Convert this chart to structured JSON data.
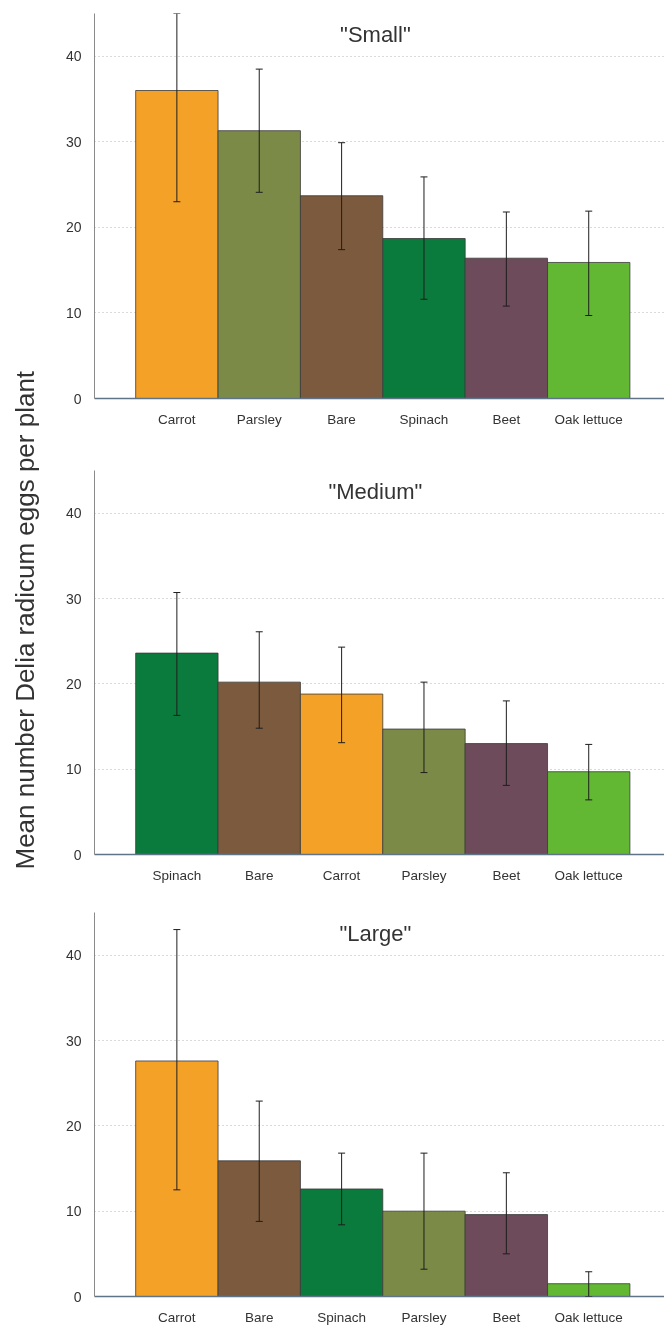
{
  "chart_data": [
    {
      "type": "bar",
      "title": "\"Small\"",
      "categories": [
        "Carrot",
        "Parsley",
        "Bare",
        "Spinach",
        "Beet",
        "Oak lettuce"
      ],
      "values": [
        36,
        31.3,
        23.7,
        18.7,
        16.4,
        15.9
      ],
      "colors": [
        "#f4a127",
        "#7b8b47",
        "#7b5a3e",
        "#0b7a3d",
        "#6e4b5a",
        "#62b832"
      ],
      "errors": [
        [
          23,
          45
        ],
        [
          24.1,
          38.5
        ],
        [
          17.4,
          29.9
        ],
        [
          11.6,
          25.9
        ],
        [
          10.8,
          21.8
        ],
        [
          9.7,
          21.9
        ]
      ],
      "ylim": [
        0,
        45
      ],
      "yticks": [
        0,
        10,
        20,
        30,
        40
      ],
      "grid": "y"
    },
    {
      "type": "bar",
      "title": "\"Medium\"",
      "ylabel": "Mean number Delia radicum eggs per plant",
      "categories": [
        "Spinach",
        "Bare",
        "Carrot",
        "Parsley",
        "Beet",
        "Oak lettuce"
      ],
      "values": [
        23.6,
        20.2,
        18.8,
        14.7,
        13.0,
        9.7
      ],
      "colors": [
        "#0b7a3d",
        "#7b5a3e",
        "#f4a127",
        "#7b8b47",
        "#6e4b5a",
        "#62b832"
      ],
      "errors": [
        [
          16.3,
          30.7
        ],
        [
          14.8,
          26.1
        ],
        [
          13.1,
          24.3
        ],
        [
          9.6,
          20.2
        ],
        [
          8.1,
          18.0
        ],
        [
          6.4,
          12.9
        ]
      ],
      "ylim": [
        0,
        45
      ],
      "yticks": [
        0,
        10,
        20,
        30,
        40
      ],
      "grid": "y"
    },
    {
      "type": "bar",
      "title": "\"Large\"",
      "categories": [
        "Carrot",
        "Bare",
        "Spinach",
        "Parsley",
        "Beet",
        "Oak lettuce"
      ],
      "values": [
        27.6,
        15.9,
        12.6,
        10.0,
        9.6,
        1.5
      ],
      "colors": [
        "#f4a127",
        "#7b5a3e",
        "#0b7a3d",
        "#7b8b47",
        "#6e4b5a",
        "#62b832"
      ],
      "errors": [
        [
          12.5,
          43.0
        ],
        [
          8.8,
          22.9
        ],
        [
          8.4,
          16.8
        ],
        [
          3.2,
          16.8
        ],
        [
          5.0,
          14.5
        ],
        [
          0,
          2.9
        ]
      ],
      "ylim": [
        0,
        45
      ],
      "yticks": [
        0,
        10,
        20,
        30,
        40
      ],
      "grid": "y"
    }
  ]
}
